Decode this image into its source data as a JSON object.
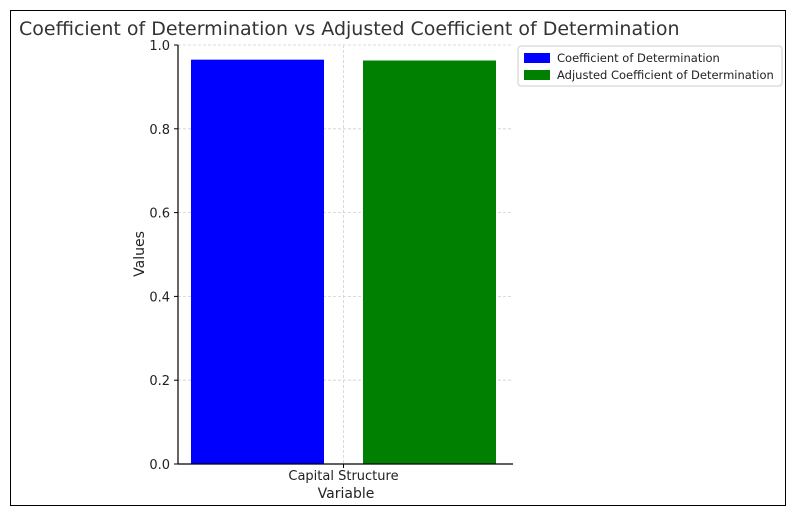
{
  "chart_data": {
    "type": "bar",
    "title": "Coefficient of Determination vs Adjusted Coefficient of Determination",
    "xlabel": "Variable",
    "ylabel": "Values",
    "categories": [
      "Capital Structure"
    ],
    "series": [
      {
        "name": "Coefficient of Determination",
        "values": [
          0.965
        ],
        "color": "#0000ff"
      },
      {
        "name": "Adjusted Coefficient of Determination",
        "values": [
          0.963
        ],
        "color": "#008000"
      }
    ],
    "ylim": [
      0,
      1.0
    ],
    "yticks": [
      "0.0",
      "0.2",
      "0.4",
      "0.6",
      "0.8",
      "1.0"
    ],
    "grid": true,
    "legend": "top-right"
  }
}
